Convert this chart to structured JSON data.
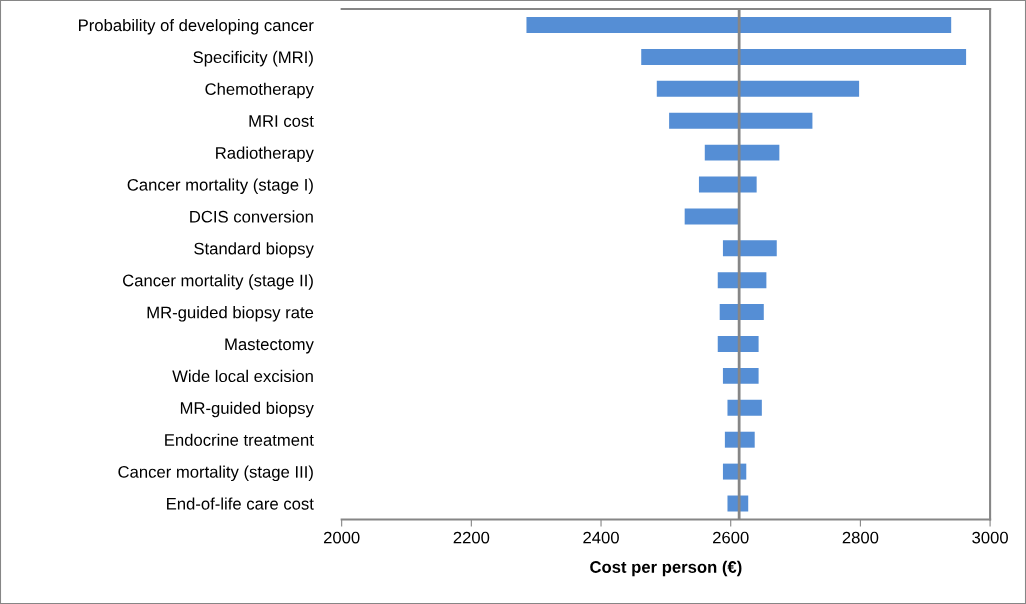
{
  "chart_data": {
    "type": "bar",
    "orientation": "horizontal",
    "xlabel": "Cost per person (€)",
    "categories": [
      "Probability of developing cancer",
      "Specificity (MRI)",
      "Chemotherapy",
      "MRI cost",
      "Radiotherapy",
      "Cancer mortality (stage I)",
      "DCIS conversion",
      "Standard biopsy",
      "Cancer mortality (stage II)",
      "MR-guided biopsy rate",
      "Mastectomy",
      "Wide local excision",
      "MR-guided biopsy",
      "Endocrine treatment",
      "Cancer mortality (stage III)",
      "End-of-life care cost"
    ],
    "base": [
      2285,
      2462,
      2486,
      2505,
      2560,
      2551,
      2529,
      2588,
      2580,
      2583,
      2580,
      2588,
      2595,
      2591,
      2588,
      2595
    ],
    "values": [
      655,
      501,
      312,
      221,
      115,
      89,
      84,
      83,
      75,
      68,
      63,
      55,
      53,
      46,
      36,
      32
    ],
    "color": "#558ed5",
    "xlim": [
      2000,
      3000
    ],
    "xticks": [
      2000,
      2200,
      2400,
      2600,
      2800,
      3000
    ],
    "ref_lines": [
      {
        "axis": "x",
        "value": 2613,
        "color": "#868686"
      }
    ],
    "grid": false,
    "legend": false
  }
}
